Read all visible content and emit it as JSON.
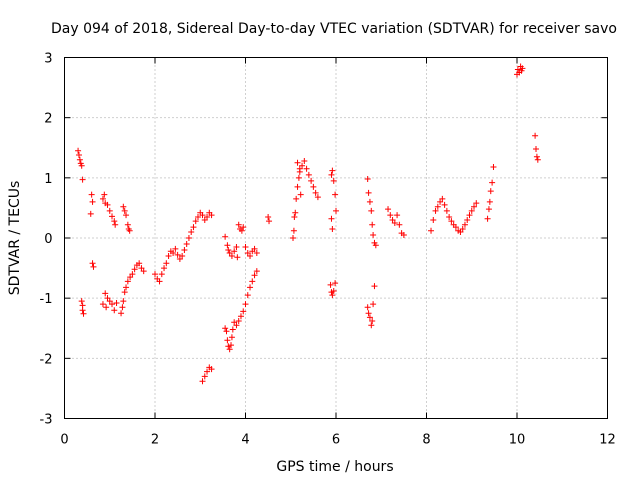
{
  "chart_data": {
    "type": "scatter",
    "title": "Day 094 of 2018, Sidereal Day-to-day VTEC variation (SDTVAR) for receiver savo",
    "xlabel": "GPS time / hours",
    "ylabel": "SDTVAR / TECUs",
    "xlim": [
      0,
      12
    ],
    "ylim": [
      -3,
      3
    ],
    "xticks": [
      0,
      2,
      4,
      6,
      8,
      10,
      12
    ],
    "yticks": [
      -3,
      -2,
      -1,
      0,
      1,
      2,
      3
    ],
    "grid": true,
    "marker": "+",
    "color": "#ff0000",
    "series": [
      {
        "name": "SDTVAR",
        "points": [
          [
            0.3,
            1.45
          ],
          [
            0.32,
            1.38
          ],
          [
            0.34,
            1.3
          ],
          [
            0.36,
            1.24
          ],
          [
            0.38,
            1.2
          ],
          [
            0.4,
            0.97
          ],
          [
            0.38,
            -1.05
          ],
          [
            0.4,
            -1.12
          ],
          [
            0.4,
            -1.2
          ],
          [
            0.42,
            -1.26
          ],
          [
            0.6,
            0.72
          ],
          [
            0.62,
            0.6
          ],
          [
            0.58,
            0.4
          ],
          [
            0.62,
            -0.42
          ],
          [
            0.64,
            -0.48
          ],
          [
            0.85,
            0.65
          ],
          [
            0.88,
            0.72
          ],
          [
            0.9,
            0.58
          ],
          [
            0.95,
            0.55
          ],
          [
            1.0,
            0.45
          ],
          [
            1.05,
            0.36
          ],
          [
            1.1,
            0.28
          ],
          [
            1.12,
            0.22
          ],
          [
            0.9,
            -0.92
          ],
          [
            0.95,
            -1.0
          ],
          [
            1.0,
            -1.05
          ],
          [
            1.05,
            -1.1
          ],
          [
            1.1,
            -1.2
          ],
          [
            1.15,
            -1.08
          ],
          [
            0.85,
            -1.1
          ],
          [
            0.92,
            -1.15
          ],
          [
            1.3,
            0.52
          ],
          [
            1.33,
            0.45
          ],
          [
            1.36,
            0.38
          ],
          [
            1.4,
            0.22
          ],
          [
            1.42,
            0.15
          ],
          [
            1.44,
            0.12
          ],
          [
            1.25,
            -1.25
          ],
          [
            1.28,
            -1.15
          ],
          [
            1.3,
            -1.05
          ],
          [
            1.33,
            -0.9
          ],
          [
            1.36,
            -0.82
          ],
          [
            1.4,
            -0.72
          ],
          [
            1.45,
            -0.65
          ],
          [
            1.5,
            -0.6
          ],
          [
            1.55,
            -0.52
          ],
          [
            1.6,
            -0.45
          ],
          [
            1.65,
            -0.42
          ],
          [
            1.7,
            -0.5
          ],
          [
            1.75,
            -0.55
          ],
          [
            2.0,
            -0.6
          ],
          [
            2.05,
            -0.68
          ],
          [
            2.1,
            -0.72
          ],
          [
            2.15,
            -0.6
          ],
          [
            2.2,
            -0.5
          ],
          [
            2.25,
            -0.42
          ],
          [
            2.3,
            -0.3
          ],
          [
            2.35,
            -0.22
          ],
          [
            2.4,
            -0.25
          ],
          [
            2.45,
            -0.18
          ],
          [
            2.5,
            -0.28
          ],
          [
            2.55,
            -0.35
          ],
          [
            2.6,
            -0.3
          ],
          [
            2.65,
            -0.2
          ],
          [
            2.7,
            -0.1
          ],
          [
            2.75,
            0.0
          ],
          [
            2.8,
            0.1
          ],
          [
            2.85,
            0.18
          ],
          [
            2.9,
            0.28
          ],
          [
            2.95,
            0.35
          ],
          [
            3.0,
            0.42
          ],
          [
            3.05,
            0.38
          ],
          [
            3.1,
            0.3
          ],
          [
            3.15,
            0.35
          ],
          [
            3.2,
            0.42
          ],
          [
            3.25,
            0.38
          ],
          [
            3.05,
            -2.38
          ],
          [
            3.1,
            -2.3
          ],
          [
            3.15,
            -2.22
          ],
          [
            3.2,
            -2.15
          ],
          [
            3.25,
            -2.18
          ],
          [
            3.55,
            0.02
          ],
          [
            3.6,
            -0.12
          ],
          [
            3.62,
            -0.2
          ],
          [
            3.65,
            -0.25
          ],
          [
            3.7,
            -0.3
          ],
          [
            3.75,
            -0.22
          ],
          [
            3.8,
            -0.15
          ],
          [
            3.82,
            -0.32
          ],
          [
            3.55,
            -1.5
          ],
          [
            3.58,
            -1.55
          ],
          [
            3.6,
            -1.7
          ],
          [
            3.62,
            -1.8
          ],
          [
            3.65,
            -1.85
          ],
          [
            3.68,
            -1.78
          ],
          [
            3.7,
            -1.65
          ],
          [
            3.72,
            -1.52
          ],
          [
            3.75,
            -1.4
          ],
          [
            3.8,
            -1.45
          ],
          [
            3.85,
            -1.38
          ],
          [
            3.9,
            -1.3
          ],
          [
            3.95,
            -1.22
          ],
          [
            4.0,
            -1.1
          ],
          [
            4.05,
            -0.95
          ],
          [
            4.1,
            -0.82
          ],
          [
            4.15,
            -0.72
          ],
          [
            4.2,
            -0.62
          ],
          [
            4.25,
            -0.55
          ],
          [
            3.85,
            0.22
          ],
          [
            3.88,
            0.15
          ],
          [
            3.92,
            0.12
          ],
          [
            3.95,
            0.18
          ],
          [
            4.0,
            -0.15
          ],
          [
            4.05,
            -0.25
          ],
          [
            4.1,
            -0.3
          ],
          [
            4.15,
            -0.22
          ],
          [
            4.2,
            -0.18
          ],
          [
            4.25,
            -0.25
          ],
          [
            4.5,
            0.35
          ],
          [
            4.52,
            0.28
          ],
          [
            5.05,
            0.0
          ],
          [
            5.07,
            0.12
          ],
          [
            5.08,
            0.35
          ],
          [
            5.1,
            0.42
          ],
          [
            5.12,
            0.65
          ],
          [
            5.15,
            0.85
          ],
          [
            5.18,
            1.0
          ],
          [
            5.2,
            1.1
          ],
          [
            5.25,
            1.2
          ],
          [
            5.3,
            1.28
          ],
          [
            5.35,
            1.15
          ],
          [
            5.4,
            1.05
          ],
          [
            5.45,
            0.95
          ],
          [
            5.5,
            0.85
          ],
          [
            5.55,
            0.75
          ],
          [
            5.6,
            0.68
          ],
          [
            5.15,
            1.25
          ],
          [
            5.2,
            1.15
          ],
          [
            5.22,
            0.72
          ],
          [
            5.9,
            1.05
          ],
          [
            5.92,
            1.12
          ],
          [
            5.95,
            0.95
          ],
          [
            5.98,
            0.72
          ],
          [
            6.0,
            0.45
          ],
          [
            5.9,
            0.32
          ],
          [
            5.92,
            0.15
          ],
          [
            5.88,
            -0.78
          ],
          [
            5.9,
            -0.9
          ],
          [
            5.92,
            -0.95
          ],
          [
            5.95,
            -0.88
          ],
          [
            5.98,
            -0.75
          ],
          [
            6.7,
            0.98
          ],
          [
            6.72,
            0.75
          ],
          [
            6.75,
            0.6
          ],
          [
            6.78,
            0.45
          ],
          [
            6.8,
            0.22
          ],
          [
            6.82,
            0.05
          ],
          [
            6.85,
            -0.08
          ],
          [
            6.88,
            -0.12
          ],
          [
            6.7,
            -1.15
          ],
          [
            6.72,
            -1.25
          ],
          [
            6.75,
            -1.32
          ],
          [
            6.78,
            -1.45
          ],
          [
            6.8,
            -1.38
          ],
          [
            6.82,
            -1.1
          ],
          [
            6.85,
            -0.8
          ],
          [
            7.15,
            0.48
          ],
          [
            7.2,
            0.38
          ],
          [
            7.25,
            0.3
          ],
          [
            7.3,
            0.25
          ],
          [
            7.35,
            0.38
          ],
          [
            7.4,
            0.22
          ],
          [
            7.45,
            0.08
          ],
          [
            7.5,
            0.05
          ],
          [
            8.1,
            0.12
          ],
          [
            8.15,
            0.3
          ],
          [
            8.2,
            0.45
          ],
          [
            8.25,
            0.52
          ],
          [
            8.3,
            0.6
          ],
          [
            8.35,
            0.65
          ],
          [
            8.4,
            0.55
          ],
          [
            8.45,
            0.45
          ],
          [
            8.5,
            0.35
          ],
          [
            8.55,
            0.28
          ],
          [
            8.6,
            0.22
          ],
          [
            8.65,
            0.18
          ],
          [
            8.7,
            0.12
          ],
          [
            8.75,
            0.1
          ],
          [
            8.8,
            0.15
          ],
          [
            8.85,
            0.22
          ],
          [
            8.9,
            0.3
          ],
          [
            8.95,
            0.38
          ],
          [
            9.0,
            0.45
          ],
          [
            9.05,
            0.52
          ],
          [
            9.1,
            0.58
          ],
          [
            9.35,
            0.32
          ],
          [
            9.38,
            0.48
          ],
          [
            9.4,
            0.6
          ],
          [
            9.42,
            0.78
          ],
          [
            9.45,
            0.92
          ],
          [
            9.48,
            1.18
          ],
          [
            10.0,
            2.72
          ],
          [
            10.02,
            2.8
          ],
          [
            10.05,
            2.75
          ],
          [
            10.08,
            2.85
          ],
          [
            10.1,
            2.78
          ],
          [
            10.12,
            2.82
          ],
          [
            10.4,
            1.7
          ],
          [
            10.42,
            1.48
          ],
          [
            10.44,
            1.35
          ],
          [
            10.46,
            1.3
          ]
        ]
      }
    ]
  }
}
